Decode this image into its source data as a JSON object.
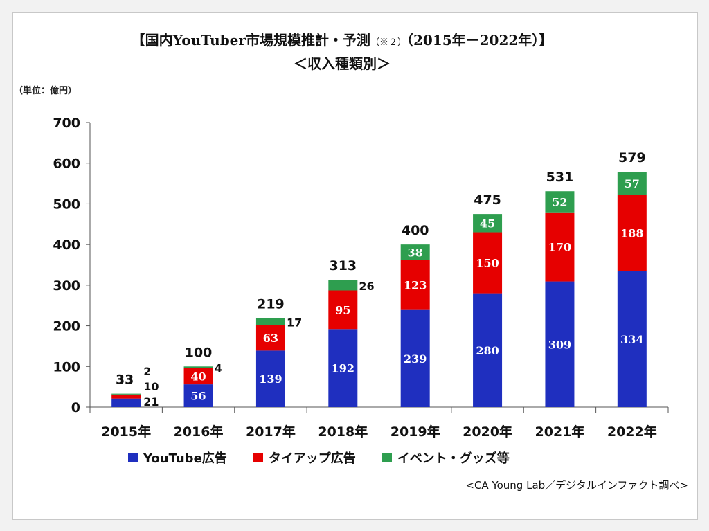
{
  "title_line1_main": "【国内YouTuber市場規模推計・予測",
  "title_line1_note": "（※２）",
  "title_line1_years": "（2015年－2022年）】",
  "title_line2": "＜収入種類別＞",
  "unit_label": "（単位：億円）",
  "source": "<CA Young Lab／デジタルインファクト調べ>",
  "colors": {
    "youtube": "#1f2fbf",
    "tieup": "#e60000",
    "event": "#2e9e4f"
  },
  "chart_data": {
    "type": "bar",
    "stacked": true,
    "categories": [
      "2015年",
      "2016年",
      "2017年",
      "2018年",
      "2019年",
      "2020年",
      "2021年",
      "2022年"
    ],
    "series": [
      {
        "name": "YouTube広告",
        "values": [
          21,
          56,
          139,
          192,
          239,
          280,
          309,
          334
        ]
      },
      {
        "name": "タイアップ広告",
        "values": [
          10,
          40,
          63,
          95,
          123,
          150,
          170,
          188
        ]
      },
      {
        "name": "イベント・グッズ等",
        "values": [
          2,
          4,
          17,
          26,
          38,
          45,
          52,
          57
        ]
      }
    ],
    "totals": [
      33,
      100,
      219,
      313,
      400,
      475,
      531,
      579
    ],
    "ylim": [
      0,
      700
    ],
    "yticks": [
      0,
      100,
      200,
      300,
      400,
      500,
      600,
      700
    ],
    "legend_position": "bottom"
  }
}
